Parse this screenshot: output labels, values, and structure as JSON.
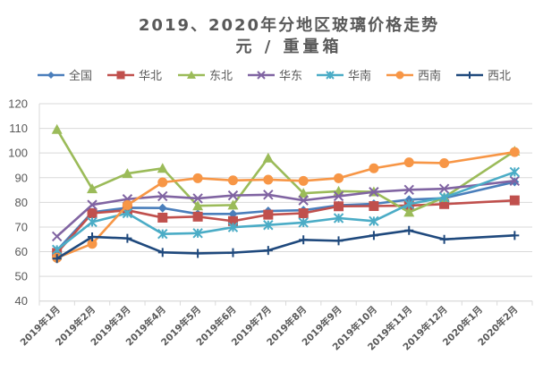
{
  "chart_data": {
    "type": "line",
    "title": "2019、2020年分地区玻璃价格走势",
    "subtitle": "元 / 重量箱",
    "xlabel": "",
    "ylabel": "",
    "ylim": [
      40,
      120
    ],
    "yticks": [
      40,
      50,
      60,
      70,
      80,
      90,
      100,
      110,
      120
    ],
    "grid": true,
    "legend_position": "top",
    "categories": [
      "2019年1月",
      "2019年2月",
      "2019年3月",
      "2019年4月",
      "2019年5月",
      "2019年6月",
      "2019年7月",
      "2019年8月",
      "2019年9月",
      "2019年10月",
      "2019年11月",
      "2019年12月",
      "2020年1月",
      "2020年2月"
    ],
    "series": [
      {
        "name": "全国",
        "color": "#4A7EBB",
        "marker": "diamond",
        "values": [
          60.5,
          76.0,
          77.8,
          77.7,
          75.3,
          75.3,
          76.5,
          76.8,
          78.8,
          79.4,
          81.1,
          81.7,
          null,
          88.3
        ]
      },
      {
        "name": "华北",
        "color": "#C0504D",
        "marker": "square",
        "values": [
          59.5,
          75.6,
          76.8,
          73.8,
          74.2,
          72.4,
          75.0,
          75.6,
          78.4,
          78.5,
          78.7,
          79.3,
          null,
          80.8
        ]
      },
      {
        "name": "东北",
        "color": "#9BBB59",
        "marker": "triangle",
        "values": [
          109.6,
          85.5,
          91.7,
          93.8,
          78.6,
          78.9,
          98.0,
          83.7,
          84.5,
          84.3,
          76.0,
          82.0,
          null,
          100.8
        ]
      },
      {
        "name": "华东",
        "color": "#8064A2",
        "marker": "x",
        "values": [
          66.2,
          79.0,
          81.3,
          82.5,
          81.6,
          82.8,
          83.1,
          80.8,
          82.5,
          84.2,
          85.1,
          85.5,
          null,
          88.7
        ]
      },
      {
        "name": "华南",
        "color": "#4BACC6",
        "marker": "star",
        "values": [
          60.8,
          72.0,
          75.6,
          67.2,
          67.5,
          69.9,
          70.8,
          71.8,
          73.6,
          72.4,
          79.3,
          82.0,
          null,
          92.3
        ]
      },
      {
        "name": "西南",
        "color": "#F79646",
        "marker": "circle",
        "values": [
          57.5,
          63.2,
          78.9,
          88.1,
          89.8,
          88.9,
          89.2,
          88.7,
          89.8,
          93.8,
          96.2,
          95.9,
          null,
          100.4
        ]
      },
      {
        "name": "西北",
        "color": "#1F497D",
        "marker": "plus",
        "values": [
          57.2,
          66.0,
          65.4,
          59.7,
          59.3,
          59.6,
          60.5,
          64.8,
          64.4,
          66.6,
          68.6,
          65.0,
          null,
          66.6
        ]
      }
    ]
  }
}
